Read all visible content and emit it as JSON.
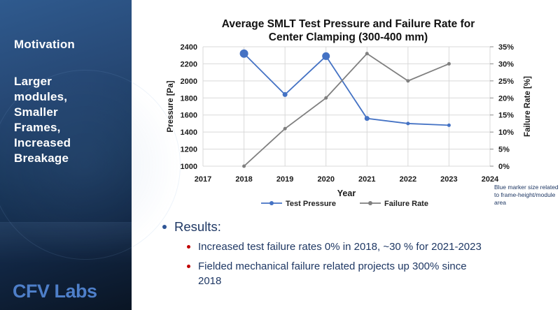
{
  "sidebar": {
    "heading": "Motivation",
    "body": "Larger\nmodules,\nSmaller\nFrames,\nIncreased\nBreakage",
    "logo": "CFV Labs"
  },
  "chart_data": {
    "type": "line",
    "title": "Average SMLT Test Pressure and Failure Rate for Center Clamping (300-400 mm)",
    "title_lines": [
      "Average SMLT Test Pressure and Failure Rate for",
      "Center Clamping (300-400 mm)"
    ],
    "xlabel": "Year",
    "x_range": [
      2017,
      2024
    ],
    "x_ticks": [
      2017,
      2018,
      2019,
      2020,
      2021,
      2022,
      2023,
      2024
    ],
    "left_axis": {
      "label": "Pressure [Pa]",
      "min": 1000,
      "max": 2400,
      "step": 200
    },
    "right_axis": {
      "label": "Failure Rate [%]",
      "min": 0,
      "max": 35,
      "step": 5,
      "suffix": "%"
    },
    "grid": true,
    "legend_position": "bottom",
    "series": [
      {
        "name": "Test Pressure",
        "axis": "left",
        "color": "#4472C4",
        "x": [
          2018,
          2019,
          2020,
          2021,
          2022,
          2023
        ],
        "values": [
          2320,
          1840,
          2290,
          1560,
          1500,
          1480
        ],
        "marker_radii": [
          6,
          3.5,
          5.5,
          3.5,
          2.5,
          2.5
        ]
      },
      {
        "name": "Failure Rate",
        "axis": "right",
        "color": "#7F7F7F",
        "x": [
          2018,
          2019,
          2020,
          2021,
          2022,
          2023
        ],
        "values": [
          0,
          11,
          20,
          33,
          25,
          30
        ],
        "unit": "%",
        "marker_radii": [
          2.5,
          2.5,
          2.5,
          2.5,
          2.5,
          2.5
        ]
      }
    ],
    "annotation": "Blue marker size related to frame-height/module area"
  },
  "results": {
    "heading": "Results:",
    "bullets": [
      "Increased test failure rates 0% in 2018, ~30 % for 2021-2023",
      "Fielded mechanical failure related projects up 300% since\n2018"
    ]
  },
  "colors": {
    "test_pressure": "#4472C4",
    "failure_rate": "#7F7F7F",
    "body_text": "#1F3864",
    "sub_bullet": "#C00000",
    "gridline": "#D9D9D9",
    "logo_blue": "#4E7FC9"
  }
}
